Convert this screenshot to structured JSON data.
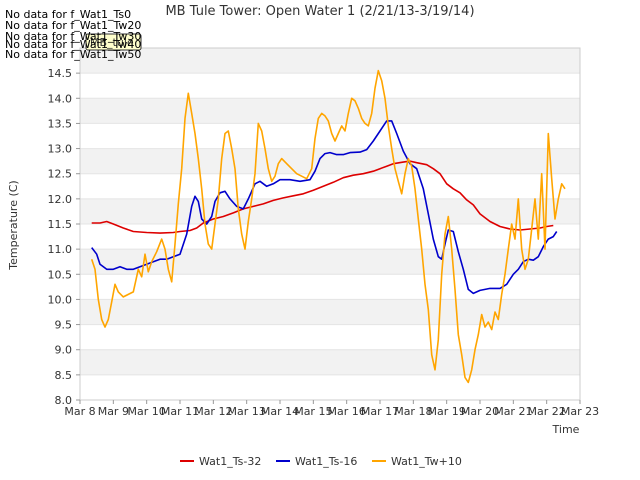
{
  "chart_data": {
    "type": "line",
    "title": "MB Tule Tower: Open Water 1 (2/21/13-3/19/14)",
    "xlabel": "Time",
    "ylabel": "Temperature (C)",
    "xlim": [
      8,
      23
    ],
    "ylim": [
      8.0,
      15.0
    ],
    "x_ticks": [
      8,
      9,
      10,
      11,
      12,
      13,
      14,
      15,
      16,
      17,
      18,
      19,
      20,
      21,
      22,
      23
    ],
    "x_tick_labels": [
      "Mar 8",
      "Mar 9",
      "Mar 10",
      "Mar 11",
      "Mar 12",
      "Mar 13",
      "Mar 14",
      "Mar 15",
      "Mar 16",
      "Mar 17",
      "Mar 18",
      "Mar 19",
      "Mar 20",
      "Mar 21",
      "Mar 22",
      "Mar 23"
    ],
    "y_ticks": [
      8.0,
      8.5,
      9.0,
      9.5,
      10.0,
      10.5,
      11.0,
      11.5,
      12.0,
      12.5,
      13.0,
      13.5,
      14.0,
      14.5
    ],
    "y_tick_labels": [
      "8.0",
      "8.5",
      "9.0",
      "9.5",
      "10.0",
      "10.5",
      "11.0",
      "11.5",
      "12.0",
      "12.5",
      "13.0",
      "13.5",
      "14.0",
      "14.5"
    ],
    "grid": "horizontal bands",
    "legend_position": "bottom",
    "series": [
      {
        "name": "Wat1_Ts-32",
        "color": "#dd0000",
        "points": [
          [
            8.35,
            11.52
          ],
          [
            8.6,
            11.52
          ],
          [
            8.8,
            11.55
          ],
          [
            9.0,
            11.5
          ],
          [
            9.3,
            11.42
          ],
          [
            9.6,
            11.35
          ],
          [
            10.0,
            11.33
          ],
          [
            10.4,
            11.32
          ],
          [
            10.8,
            11.33
          ],
          [
            11.0,
            11.35
          ],
          [
            11.3,
            11.37
          ],
          [
            11.5,
            11.42
          ],
          [
            11.7,
            11.52
          ],
          [
            12.0,
            11.6
          ],
          [
            12.3,
            11.65
          ],
          [
            12.6,
            11.72
          ],
          [
            12.9,
            11.8
          ],
          [
            13.2,
            11.85
          ],
          [
            13.5,
            11.9
          ],
          [
            13.8,
            11.97
          ],
          [
            14.1,
            12.02
          ],
          [
            14.4,
            12.06
          ],
          [
            14.7,
            12.1
          ],
          [
            15.0,
            12.17
          ],
          [
            15.3,
            12.25
          ],
          [
            15.6,
            12.33
          ],
          [
            15.9,
            12.42
          ],
          [
            16.2,
            12.47
          ],
          [
            16.5,
            12.5
          ],
          [
            16.8,
            12.55
          ],
          [
            17.0,
            12.6
          ],
          [
            17.2,
            12.65
          ],
          [
            17.4,
            12.7
          ],
          [
            17.7,
            12.73
          ],
          [
            17.9,
            12.75
          ],
          [
            18.1,
            12.72
          ],
          [
            18.4,
            12.68
          ],
          [
            18.6,
            12.6
          ],
          [
            18.8,
            12.5
          ],
          [
            19.0,
            12.3
          ],
          [
            19.2,
            12.2
          ],
          [
            19.4,
            12.12
          ],
          [
            19.6,
            11.98
          ],
          [
            19.8,
            11.88
          ],
          [
            20.0,
            11.7
          ],
          [
            20.3,
            11.55
          ],
          [
            20.6,
            11.45
          ],
          [
            20.9,
            11.4
          ],
          [
            21.2,
            11.38
          ],
          [
            21.5,
            11.4
          ],
          [
            21.8,
            11.42
          ],
          [
            22.0,
            11.45
          ],
          [
            22.2,
            11.47
          ]
        ]
      },
      {
        "name": "Wat1_Ts-16",
        "color": "#0000cc",
        "points": [
          [
            8.35,
            11.03
          ],
          [
            8.5,
            10.9
          ],
          [
            8.6,
            10.7
          ],
          [
            8.8,
            10.6
          ],
          [
            9.0,
            10.6
          ],
          [
            9.2,
            10.65
          ],
          [
            9.4,
            10.6
          ],
          [
            9.6,
            10.6
          ],
          [
            9.8,
            10.65
          ],
          [
            10.0,
            10.7
          ],
          [
            10.2,
            10.75
          ],
          [
            10.4,
            10.8
          ],
          [
            10.6,
            10.8
          ],
          [
            10.8,
            10.85
          ],
          [
            11.0,
            10.9
          ],
          [
            11.2,
            11.3
          ],
          [
            11.35,
            11.85
          ],
          [
            11.45,
            12.05
          ],
          [
            11.55,
            11.95
          ],
          [
            11.65,
            11.6
          ],
          [
            11.8,
            11.5
          ],
          [
            11.95,
            11.65
          ],
          [
            12.05,
            11.95
          ],
          [
            12.2,
            12.12
          ],
          [
            12.35,
            12.15
          ],
          [
            12.5,
            12.0
          ],
          [
            12.7,
            11.85
          ],
          [
            12.9,
            11.8
          ],
          [
            13.05,
            12.0
          ],
          [
            13.25,
            12.3
          ],
          [
            13.4,
            12.35
          ],
          [
            13.6,
            12.25
          ],
          [
            13.8,
            12.3
          ],
          [
            14.0,
            12.38
          ],
          [
            14.3,
            12.38
          ],
          [
            14.6,
            12.35
          ],
          [
            14.9,
            12.38
          ],
          [
            15.05,
            12.55
          ],
          [
            15.2,
            12.8
          ],
          [
            15.35,
            12.9
          ],
          [
            15.5,
            12.92
          ],
          [
            15.7,
            12.88
          ],
          [
            15.9,
            12.88
          ],
          [
            16.1,
            12.92
          ],
          [
            16.4,
            12.93
          ],
          [
            16.6,
            12.98
          ],
          [
            16.8,
            13.15
          ],
          [
            17.0,
            13.35
          ],
          [
            17.2,
            13.55
          ],
          [
            17.35,
            13.55
          ],
          [
            17.5,
            13.3
          ],
          [
            17.7,
            12.95
          ],
          [
            17.9,
            12.7
          ],
          [
            18.1,
            12.6
          ],
          [
            18.3,
            12.2
          ],
          [
            18.45,
            11.7
          ],
          [
            18.6,
            11.2
          ],
          [
            18.75,
            10.85
          ],
          [
            18.85,
            10.8
          ],
          [
            18.95,
            11.1
          ],
          [
            19.05,
            11.38
          ],
          [
            19.2,
            11.35
          ],
          [
            19.35,
            10.95
          ],
          [
            19.5,
            10.6
          ],
          [
            19.65,
            10.2
          ],
          [
            19.8,
            10.12
          ],
          [
            20.0,
            10.18
          ],
          [
            20.3,
            10.22
          ],
          [
            20.6,
            10.22
          ],
          [
            20.8,
            10.3
          ],
          [
            21.0,
            10.5
          ],
          [
            21.15,
            10.6
          ],
          [
            21.3,
            10.75
          ],
          [
            21.45,
            10.8
          ],
          [
            21.6,
            10.78
          ],
          [
            21.75,
            10.85
          ],
          [
            21.9,
            11.05
          ],
          [
            22.05,
            11.2
          ],
          [
            22.2,
            11.25
          ],
          [
            22.3,
            11.35
          ]
        ]
      },
      {
        "name": "Wat1_Tw+10",
        "color": "#ffa500",
        "points": [
          [
            8.35,
            10.8
          ],
          [
            8.45,
            10.6
          ],
          [
            8.55,
            10.0
          ],
          [
            8.65,
            9.6
          ],
          [
            8.75,
            9.45
          ],
          [
            8.85,
            9.6
          ],
          [
            8.95,
            9.95
          ],
          [
            9.05,
            10.3
          ],
          [
            9.15,
            10.15
          ],
          [
            9.3,
            10.05
          ],
          [
            9.45,
            10.1
          ],
          [
            9.6,
            10.15
          ],
          [
            9.75,
            10.6
          ],
          [
            9.85,
            10.45
          ],
          [
            9.95,
            10.9
          ],
          [
            10.05,
            10.55
          ],
          [
            10.15,
            10.75
          ],
          [
            10.3,
            10.95
          ],
          [
            10.45,
            11.2
          ],
          [
            10.55,
            11.0
          ],
          [
            10.65,
            10.6
          ],
          [
            10.75,
            10.35
          ],
          [
            10.85,
            11.1
          ],
          [
            10.95,
            11.9
          ],
          [
            11.05,
            12.6
          ],
          [
            11.15,
            13.6
          ],
          [
            11.25,
            14.1
          ],
          [
            11.35,
            13.7
          ],
          [
            11.45,
            13.3
          ],
          [
            11.55,
            12.8
          ],
          [
            11.65,
            12.2
          ],
          [
            11.75,
            11.5
          ],
          [
            11.85,
            11.1
          ],
          [
            11.95,
            11.0
          ],
          [
            12.05,
            11.5
          ],
          [
            12.15,
            12.0
          ],
          [
            12.25,
            12.8
          ],
          [
            12.35,
            13.3
          ],
          [
            12.45,
            13.35
          ],
          [
            12.55,
            13.0
          ],
          [
            12.65,
            12.6
          ],
          [
            12.75,
            11.8
          ],
          [
            12.85,
            11.3
          ],
          [
            12.95,
            11.0
          ],
          [
            13.05,
            11.55
          ],
          [
            13.15,
            12.0
          ],
          [
            13.25,
            12.5
          ],
          [
            13.35,
            13.5
          ],
          [
            13.45,
            13.35
          ],
          [
            13.55,
            13.0
          ],
          [
            13.65,
            12.6
          ],
          [
            13.75,
            12.35
          ],
          [
            13.85,
            12.45
          ],
          [
            13.95,
            12.7
          ],
          [
            14.05,
            12.8
          ],
          [
            14.2,
            12.7
          ],
          [
            14.35,
            12.6
          ],
          [
            14.5,
            12.5
          ],
          [
            14.65,
            12.45
          ],
          [
            14.8,
            12.4
          ],
          [
            14.95,
            12.6
          ],
          [
            15.05,
            13.2
          ],
          [
            15.15,
            13.6
          ],
          [
            15.25,
            13.7
          ],
          [
            15.35,
            13.65
          ],
          [
            15.45,
            13.55
          ],
          [
            15.55,
            13.3
          ],
          [
            15.65,
            13.15
          ],
          [
            15.75,
            13.3
          ],
          [
            15.85,
            13.45
          ],
          [
            15.95,
            13.35
          ],
          [
            16.05,
            13.7
          ],
          [
            16.15,
            14.0
          ],
          [
            16.25,
            13.95
          ],
          [
            16.35,
            13.8
          ],
          [
            16.45,
            13.6
          ],
          [
            16.55,
            13.5
          ],
          [
            16.65,
            13.45
          ],
          [
            16.75,
            13.7
          ],
          [
            16.85,
            14.2
          ],
          [
            16.95,
            14.55
          ],
          [
            17.05,
            14.35
          ],
          [
            17.15,
            14.0
          ],
          [
            17.25,
            13.45
          ],
          [
            17.35,
            13.0
          ],
          [
            17.45,
            12.6
          ],
          [
            17.55,
            12.35
          ],
          [
            17.65,
            12.1
          ],
          [
            17.75,
            12.5
          ],
          [
            17.85,
            12.8
          ],
          [
            17.95,
            12.65
          ],
          [
            18.05,
            12.2
          ],
          [
            18.15,
            11.6
          ],
          [
            18.25,
            11.0
          ],
          [
            18.35,
            10.3
          ],
          [
            18.45,
            9.8
          ],
          [
            18.55,
            8.9
          ],
          [
            18.65,
            8.6
          ],
          [
            18.75,
            9.2
          ],
          [
            18.85,
            10.5
          ],
          [
            18.95,
            11.3
          ],
          [
            19.05,
            11.65
          ],
          [
            19.15,
            11.0
          ],
          [
            19.25,
            10.2
          ],
          [
            19.35,
            9.3
          ],
          [
            19.45,
            8.9
          ],
          [
            19.55,
            8.45
          ],
          [
            19.65,
            8.35
          ],
          [
            19.75,
            8.6
          ],
          [
            19.85,
            9.0
          ],
          [
            19.95,
            9.3
          ],
          [
            20.05,
            9.7
          ],
          [
            20.15,
            9.45
          ],
          [
            20.25,
            9.55
          ],
          [
            20.35,
            9.4
          ],
          [
            20.45,
            9.75
          ],
          [
            20.55,
            9.6
          ],
          [
            20.65,
            10.1
          ],
          [
            20.75,
            10.5
          ],
          [
            20.85,
            11.0
          ],
          [
            20.95,
            11.5
          ],
          [
            21.05,
            11.2
          ],
          [
            21.15,
            12.0
          ],
          [
            21.25,
            11.0
          ],
          [
            21.35,
            10.6
          ],
          [
            21.45,
            10.8
          ],
          [
            21.55,
            11.4
          ],
          [
            21.65,
            12.0
          ],
          [
            21.75,
            11.2
          ],
          [
            21.85,
            12.5
          ],
          [
            21.95,
            11.0
          ],
          [
            22.05,
            13.3
          ],
          [
            22.15,
            12.4
          ],
          [
            22.25,
            11.6
          ],
          [
            22.35,
            12.0
          ],
          [
            22.45,
            12.3
          ],
          [
            22.55,
            12.2
          ]
        ]
      }
    ],
    "overlay_text": [
      "No data for f_Wat1_Ts0",
      "No data for f_Wat1_Tw20",
      "No data for f_Wat1_Tw30",
      "No data for f_Wat1_Tw40",
      "No data for f_Wat1_Tw50"
    ],
    "tooltip_label": "MB_tule"
  }
}
